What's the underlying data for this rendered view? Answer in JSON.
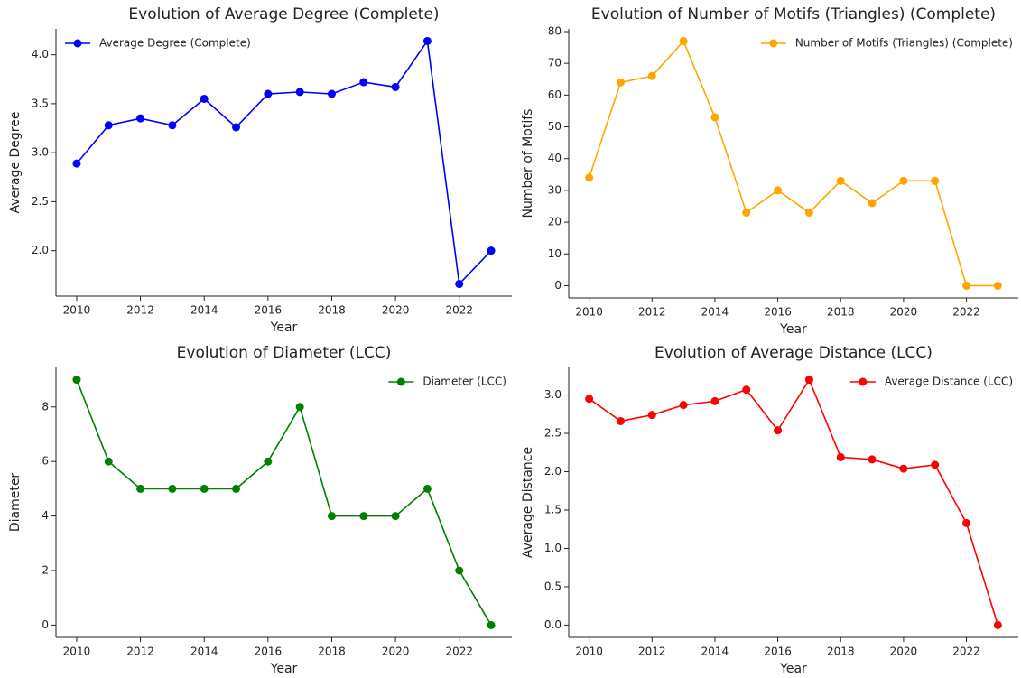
{
  "chart_data": [
    {
      "type": "line",
      "title": "Evolution of Average Degree (Complete)",
      "xlabel": "Year",
      "ylabel": "Average Degree",
      "x": [
        2010,
        2011,
        2012,
        2013,
        2014,
        2015,
        2016,
        2017,
        2018,
        2019,
        2020,
        2021,
        2022,
        2023
      ],
      "series": [
        {
          "name": "Average Degree (Complete)",
          "color": "#0000ff",
          "values": [
            2.89,
            3.28,
            3.35,
            3.28,
            3.55,
            3.26,
            3.6,
            3.62,
            3.6,
            3.72,
            3.67,
            4.14,
            1.66,
            2.0
          ]
        }
      ],
      "xlim": [
        2009.35,
        2023.65
      ],
      "xticks": [
        2010,
        2012,
        2014,
        2016,
        2018,
        2020,
        2022
      ],
      "ylim": [
        1.536,
        4.264
      ],
      "yticks": [
        {
          "value": 2,
          "label": "2.0"
        },
        2.5,
        {
          "value": 3,
          "label": "3.0"
        },
        3.5,
        {
          "value": 4,
          "label": "4.0"
        }
      ],
      "legend": "upper left"
    },
    {
      "type": "line",
      "title": "Evolution of Number of Motifs (Triangles) (Complete)",
      "xlabel": "Year",
      "ylabel": "Number of Motifs",
      "x": [
        2010,
        2011,
        2012,
        2013,
        2014,
        2015,
        2016,
        2017,
        2018,
        2019,
        2020,
        2021,
        2022,
        2023
      ],
      "series": [
        {
          "name": "Number of Motifs (Triangles) (Complete)",
          "color": "#ffa500",
          "values": [
            34,
            64,
            66,
            77,
            53,
            23,
            30,
            23,
            33,
            26,
            33,
            33,
            0,
            0
          ]
        }
      ],
      "xlim": [
        2009.35,
        2023.65
      ],
      "xticks": [
        2010,
        2012,
        2014,
        2016,
        2018,
        2020,
        2022
      ],
      "ylim": [
        -3.85,
        80.85
      ],
      "yticks": [
        0,
        10,
        20,
        30,
        40,
        50,
        60,
        70,
        80
      ],
      "legend": "upper right"
    },
    {
      "type": "line",
      "title": "Evolution of Diameter (LCC)",
      "xlabel": "Year",
      "ylabel": "Diameter",
      "x": [
        2010,
        2011,
        2012,
        2013,
        2014,
        2015,
        2016,
        2017,
        2018,
        2019,
        2020,
        2021,
        2022,
        2023
      ],
      "series": [
        {
          "name": "Diameter (LCC)",
          "color": "#008000",
          "values": [
            9,
            6,
            5,
            5,
            5,
            5,
            6,
            8,
            4,
            4,
            4,
            5,
            2,
            0
          ]
        }
      ],
      "xlim": [
        2009.35,
        2023.65
      ],
      "xticks": [
        2010,
        2012,
        2014,
        2016,
        2018,
        2020,
        2022
      ],
      "ylim": [
        -0.45,
        9.45
      ],
      "yticks": [
        0,
        2,
        4,
        6,
        8
      ],
      "legend": "upper right"
    },
    {
      "type": "line",
      "title": "Evolution of Average Distance (LCC)",
      "xlabel": "Year",
      "ylabel": "Average Distance",
      "x": [
        2010,
        2011,
        2012,
        2013,
        2014,
        2015,
        2016,
        2017,
        2018,
        2019,
        2020,
        2021,
        2022,
        2023
      ],
      "series": [
        {
          "name": "Average Distance (LCC)",
          "color": "#ff0000",
          "values": [
            2.95,
            2.66,
            2.74,
            2.87,
            2.92,
            3.07,
            2.54,
            3.2,
            2.19,
            2.16,
            2.04,
            2.09,
            1.33,
            0
          ]
        }
      ],
      "xlim": [
        2009.35,
        2023.65
      ],
      "xticks": [
        2010,
        2012,
        2014,
        2016,
        2018,
        2020,
        2022
      ],
      "ylim": [
        -0.16,
        3.36
      ],
      "yticks": [
        {
          "value": 0,
          "label": "0.0"
        },
        0.5,
        {
          "value": 1,
          "label": "1.0"
        },
        1.5,
        {
          "value": 2,
          "label": "2.0"
        },
        2.5,
        {
          "value": 3,
          "label": "3.0"
        }
      ],
      "legend": "upper right"
    }
  ]
}
